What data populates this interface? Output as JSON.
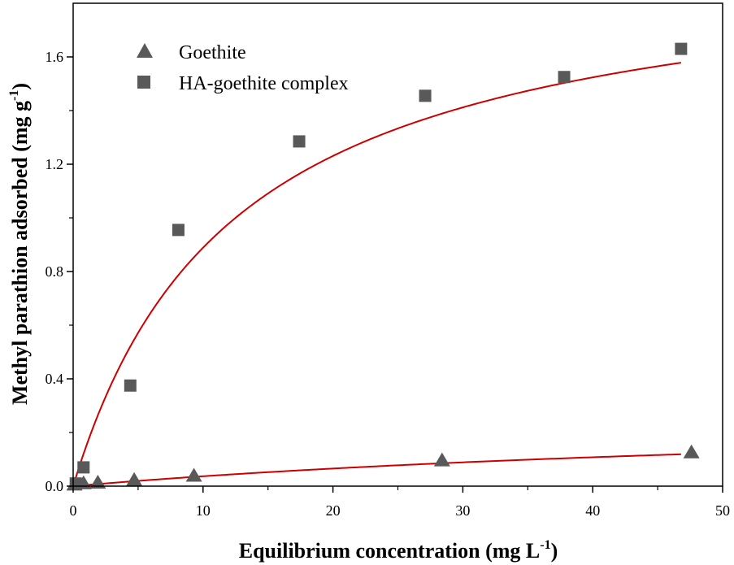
{
  "chart_data": {
    "type": "scatter",
    "title": "",
    "xlabel": "Equilibrium concentration (mg L",
    "xlabel_sup": "-1",
    "xlabel_end": ")",
    "ylabel": "Methyl parathion adsorbed (mg g",
    "ylabel_sup": "-1",
    "ylabel_end": ")",
    "xlim": [
      0,
      50
    ],
    "ylim": [
      0,
      1.8
    ],
    "x_ticks": [
      0,
      10,
      20,
      30,
      40,
      50
    ],
    "x_tick_labels": [
      "0",
      "10",
      "20",
      "30",
      "40",
      "50"
    ],
    "y_ticks": [
      0.0,
      0.4,
      0.8,
      1.2,
      1.6
    ],
    "y_tick_labels": [
      "0.0",
      "0.4",
      "0.8",
      "1.2",
      "1.6"
    ],
    "legend_position": "top-left",
    "grid": false,
    "series": [
      {
        "name": "Goethite",
        "marker": "triangle",
        "color": "#595959",
        "x": [
          0.1,
          0.8,
          1.9,
          4.7,
          9.3,
          28.4,
          47.6
        ],
        "y": [
          0.005,
          0.01,
          0.012,
          0.022,
          0.038,
          0.095,
          0.125
        ]
      },
      {
        "name": "HA-goethite complex",
        "marker": "square",
        "color": "#595959",
        "x": [
          0.2,
          0.8,
          4.4,
          8.1,
          17.4,
          27.1,
          37.8,
          46.8
        ],
        "y": [
          0.01,
          0.07,
          0.375,
          0.955,
          1.285,
          1.455,
          1.525,
          1.63
        ]
      }
    ],
    "fit_curves": [
      {
        "model": "langmuir",
        "qmax": 0.3,
        "K": 0.014,
        "color": "#cc0000"
      },
      {
        "model": "langmuir",
        "qmax": 2.0,
        "K": 0.08,
        "color": "#cc0000"
      }
    ]
  }
}
